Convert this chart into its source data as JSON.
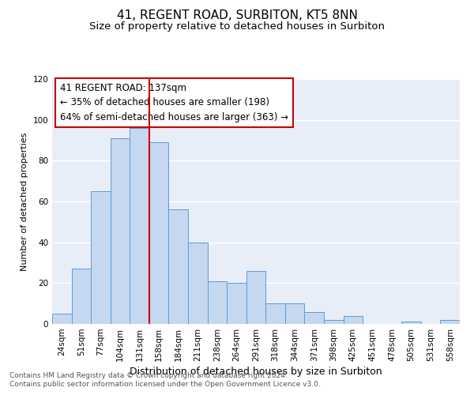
{
  "title": "41, REGENT ROAD, SURBITON, KT5 8NN",
  "subtitle": "Size of property relative to detached houses in Surbiton",
  "xlabel": "Distribution of detached houses by size in Surbiton",
  "ylabel": "Number of detached properties",
  "bin_labels": [
    "24sqm",
    "51sqm",
    "77sqm",
    "104sqm",
    "131sqm",
    "158sqm",
    "184sqm",
    "211sqm",
    "238sqm",
    "264sqm",
    "291sqm",
    "318sqm",
    "344sqm",
    "371sqm",
    "398sqm",
    "425sqm",
    "451sqm",
    "478sqm",
    "505sqm",
    "531sqm",
    "558sqm"
  ],
  "bar_heights": [
    5,
    27,
    65,
    91,
    96,
    89,
    56,
    40,
    21,
    20,
    26,
    10,
    10,
    6,
    2,
    4,
    0,
    0,
    1,
    0,
    2
  ],
  "bar_color": "#c5d8f0",
  "bar_edge_color": "#5b9bd5",
  "vline_bin_index": 4,
  "vline_color": "#cc0000",
  "ylim": [
    0,
    120
  ],
  "yticks": [
    0,
    20,
    40,
    60,
    80,
    100,
    120
  ],
  "annotation_title": "41 REGENT ROAD: 137sqm",
  "annotation_line1": "← 35% of detached houses are smaller (198)",
  "annotation_line2": "64% of semi-detached houses are larger (363) →",
  "annotation_box_color": "#ffffff",
  "annotation_box_edge": "#cc0000",
  "footnote1": "Contains HM Land Registry data © Crown copyright and database right 2024.",
  "footnote2": "Contains public sector information licensed under the Open Government Licence v3.0.",
  "background_color": "#e8eef8",
  "grid_color": "#ffffff",
  "title_fontsize": 11,
  "subtitle_fontsize": 9.5,
  "xlabel_fontsize": 9,
  "ylabel_fontsize": 8,
  "tick_fontsize": 7.5,
  "annotation_fontsize": 8.5,
  "footnote_fontsize": 6.5
}
